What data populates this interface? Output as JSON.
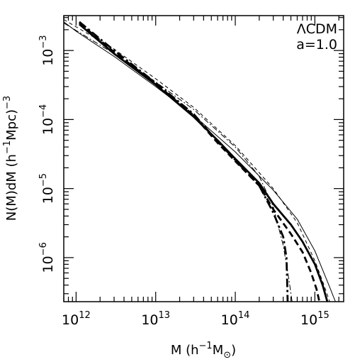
{
  "chart_data": {
    "type": "line",
    "title": "",
    "annotations": [
      "ΛCDM",
      "a=1.0"
    ],
    "xlabel": {
      "prefix": "M (h",
      "sup": "−1",
      "mid": "M",
      "sub": "⊙",
      "suffix": ")"
    },
    "ylabel": {
      "prefix": "N(M)dM (h",
      "sup": "−1",
      "mid": "Mpc)",
      "sup2": "−3"
    },
    "x_scale": "log",
    "y_scale": "log",
    "xlim": [
      700000000000.0,
      2300000000000000.0
    ],
    "ylim": [
      2.3e-07,
      0.0032
    ],
    "x_ticks": [
      {
        "base": "10",
        "exp": "12"
      },
      {
        "base": "10",
        "exp": "13"
      },
      {
        "base": "10",
        "exp": "14"
      },
      {
        "base": "10",
        "exp": "15"
      }
    ],
    "y_ticks": [
      {
        "base": "10",
        "exp": "−3"
      },
      {
        "base": "10",
        "exp": "−4"
      },
      {
        "base": "10",
        "exp": "−5"
      },
      {
        "base": "10",
        "exp": "−6"
      }
    ],
    "grid": false,
    "series": [
      {
        "style": "thin-solid",
        "x": [
          700000000000.0,
          1000000000000.0,
          3000000000000.0,
          10000000000000.0,
          30000000000000.0,
          100000000000000.0,
          300000000000000.0,
          600000000000000.0,
          1000000000000000.0,
          1500000000000000.0,
          1900000000000000.0
        ],
        "y": [
          0.0026,
          0.0019,
          0.00082,
          0.0003,
          0.000115,
          3.4e-05,
          9.5e-06,
          3.6e-06,
          1.25e-06,
          4e-07,
          2e-07
        ]
      },
      {
        "style": "thin-dashed",
        "x": [
          700000000000.0,
          1000000000000.0,
          3000000000000.0,
          10000000000000.0,
          30000000000000.0,
          100000000000000.0,
          300000000000000.0,
          600000000000000.0,
          1000000000000000.0,
          1300000000000000.0,
          1600000000000000.0
        ],
        "y": [
          0.0028,
          0.0022,
          0.00105,
          0.00039,
          0.00015,
          4.2e-05,
          1e-05,
          3.2e-06,
          9e-07,
          4e-07,
          2e-07
        ]
      },
      {
        "style": "thin-dashdot",
        "x": [
          700000000000.0,
          1000000000000.0,
          3000000000000.0,
          10000000000000.0,
          30000000000000.0,
          100000000000000.0,
          200000000000000.0,
          300000000000000.0,
          400000000000000.0,
          470000000000000.0,
          520000000000000.0
        ],
        "y": [
          0.0025,
          0.00195,
          0.0009,
          0.00035,
          0.00014,
          4e-05,
          1.5e-05,
          5.5e-06,
          1.5e-06,
          5e-07,
          2.2e-07
        ]
      },
      {
        "style": "thick-solid",
        "x": [
          1100000000000.0,
          3000000000000.0,
          10000000000000.0,
          30000000000000.0,
          60000000000000.0,
          100000000000000.0,
          200000000000000.0,
          300000000000000.0,
          500000000000000.0,
          700000000000000.0,
          1000000000000000.0,
          1250000000000000.0,
          1450000000000000.0
        ],
        "y": [
          0.0024,
          0.0009,
          0.00032,
          0.00011,
          5e-05,
          2.7e-05,
          1.2e-05,
          6e-06,
          3e-06,
          1.7e-06,
          8e-07,
          4e-07,
          2.2e-07
        ]
      },
      {
        "style": "thick-dashed",
        "x": [
          1100000000000.0,
          3000000000000.0,
          10000000000000.0,
          30000000000000.0,
          60000000000000.0,
          100000000000000.0,
          200000000000000.0,
          300000000000000.0,
          500000000000000.0,
          700000000000000.0,
          900000000000000.0,
          1050000000000000.0,
          1150000000000000.0
        ],
        "y": [
          0.0025,
          0.00095,
          0.00033,
          0.000115,
          4.6e-05,
          2.5e-05,
          1.1e-05,
          5e-06,
          2.2e-06,
          1.2e-06,
          6e-07,
          3.5e-07,
          2.2e-07
        ]
      },
      {
        "style": "thick-dashdot",
        "x": [
          1100000000000.0,
          3000000000000.0,
          10000000000000.0,
          30000000000000.0,
          60000000000000.0,
          100000000000000.0,
          200000000000000.0,
          300000000000000.0,
          400000000000000.0,
          440000000000000.0,
          450000000000000.0,
          455000000000000.0
        ],
        "y": [
          0.0026,
          0.001,
          0.00034,
          0.00012,
          4.8e-05,
          2.6e-05,
          1.1e-05,
          4.5e-06,
          2e-06,
          1e-06,
          4e-07,
          2.2e-07
        ]
      }
    ]
  }
}
